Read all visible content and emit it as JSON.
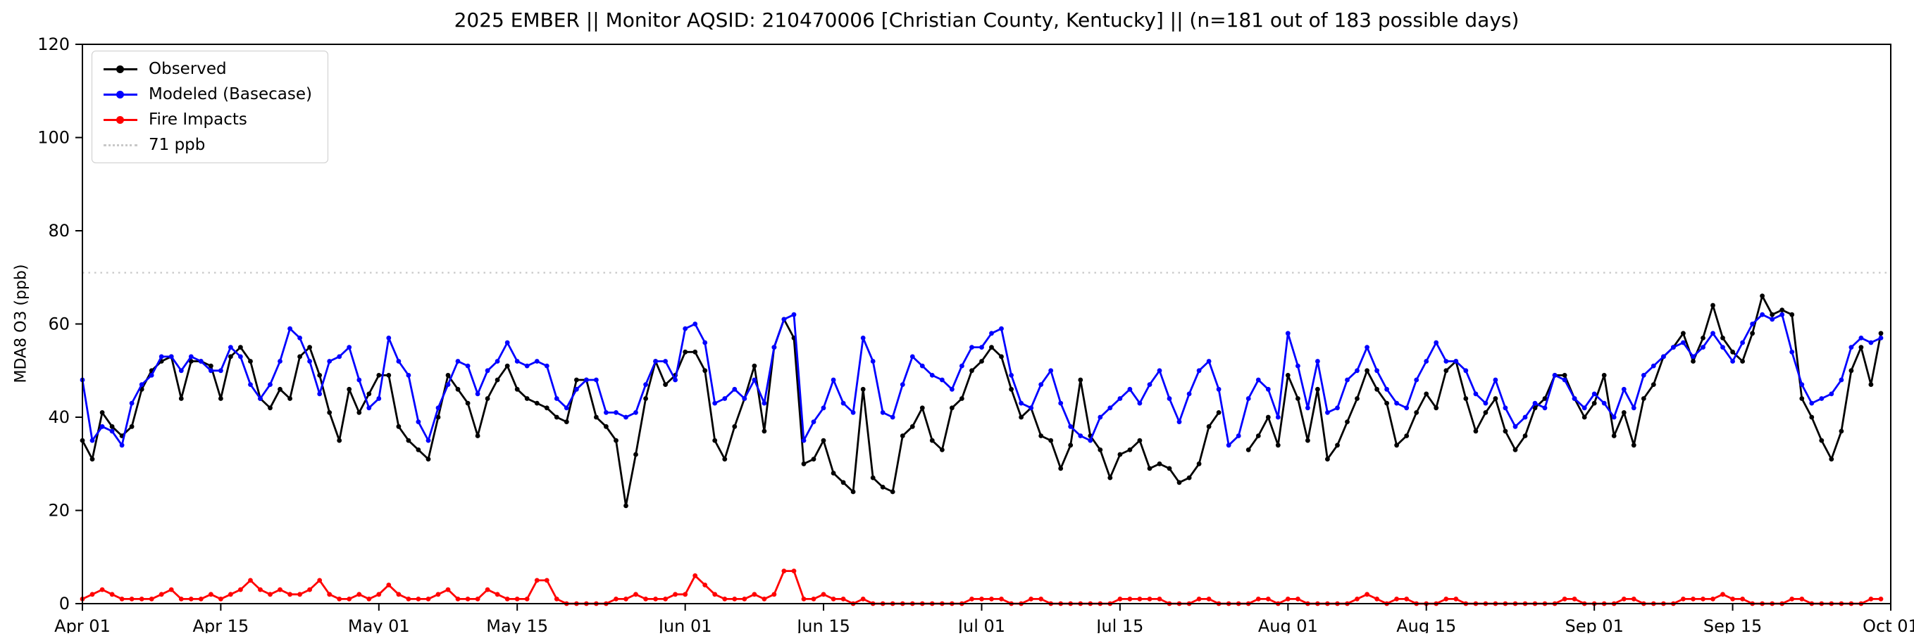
{
  "chart_data": {
    "type": "line",
    "title": "2025 EMBER || Monitor AQSID: 210470006 [Christian County, Kentucky] || (n=181 out of 183 possible days)",
    "xlabel": "",
    "ylabel": "MDA8 O3 (ppb)",
    "ylim": [
      0,
      120
    ],
    "y_ticks": [
      0,
      20,
      40,
      60,
      80,
      100,
      120
    ],
    "x_tick_labels": [
      "Apr 01",
      "Apr 15",
      "May 01",
      "May 15",
      "Jun 01",
      "Jun 15",
      "Jul 01",
      "Jul 15",
      "Aug 01",
      "Aug 15",
      "Sep 01",
      "Sep 15",
      "Oct 01"
    ],
    "x_tick_day_offsets": [
      0,
      14,
      30,
      44,
      61,
      75,
      91,
      105,
      122,
      136,
      153,
      167,
      183
    ],
    "x_range_days": 183,
    "legend_position": "upper left",
    "grid": false,
    "threshold": {
      "value": 71,
      "label": "71 ppb",
      "color": "#c8c8c8",
      "style": "dotted"
    },
    "series": [
      {
        "name": "Observed",
        "color": "#000000",
        "values": [
          35,
          31,
          41,
          38,
          36,
          38,
          46,
          50,
          52,
          53,
          44,
          52,
          52,
          51,
          44,
          53,
          55,
          52,
          44,
          42,
          46,
          44,
          53,
          55,
          49,
          41,
          35,
          46,
          41,
          45,
          49,
          49,
          38,
          35,
          33,
          31,
          40,
          49,
          46,
          43,
          36,
          44,
          48,
          51,
          46,
          44,
          43,
          42,
          40,
          39,
          48,
          48,
          40,
          38,
          35,
          21,
          32,
          44,
          52,
          47,
          49,
          54,
          54,
          50,
          35,
          31,
          38,
          44,
          51,
          37,
          55,
          61,
          57,
          30,
          31,
          35,
          28,
          26,
          24,
          46,
          27,
          25,
          24,
          36,
          38,
          42,
          35,
          33,
          42,
          44,
          50,
          52,
          55,
          53,
          46,
          40,
          42,
          36,
          35,
          29,
          34,
          48,
          36,
          33,
          27,
          32,
          33,
          35,
          29,
          30,
          29,
          26,
          27,
          30,
          38,
          41,
          null,
          null,
          33,
          36,
          40,
          34,
          49,
          44,
          35,
          46,
          31,
          34,
          39,
          44,
          50,
          46,
          43,
          34,
          36,
          41,
          45,
          42,
          50,
          52,
          44,
          37,
          41,
          44,
          37,
          33,
          36,
          42,
          44,
          49,
          49,
          44,
          40,
          43,
          49,
          36,
          41,
          34,
          44,
          47,
          53,
          55,
          58,
          52,
          57,
          64,
          57,
          54,
          52,
          58,
          66,
          62,
          63,
          62,
          44,
          40,
          35,
          31,
          37,
          50,
          55,
          47,
          58
        ]
      },
      {
        "name": "Modeled (Basecase)",
        "color": "#0000ff",
        "values": [
          48,
          35,
          38,
          37,
          34,
          43,
          47,
          49,
          53,
          53,
          50,
          53,
          52,
          50,
          50,
          55,
          53,
          47,
          44,
          47,
          52,
          59,
          57,
          52,
          45,
          52,
          53,
          55,
          48,
          42,
          44,
          57,
          52,
          49,
          39,
          35,
          42,
          47,
          52,
          51,
          45,
          50,
          52,
          56,
          52,
          51,
          52,
          51,
          44,
          42,
          46,
          48,
          48,
          41,
          41,
          40,
          41,
          47,
          52,
          52,
          48,
          59,
          60,
          56,
          43,
          44,
          46,
          44,
          48,
          43,
          55,
          61,
          62,
          35,
          39,
          42,
          48,
          43,
          41,
          57,
          52,
          41,
          40,
          47,
          53,
          51,
          49,
          48,
          46,
          51,
          55,
          55,
          58,
          59,
          49,
          43,
          42,
          47,
          50,
          43,
          38,
          36,
          35,
          40,
          42,
          44,
          46,
          43,
          47,
          50,
          44,
          39,
          45,
          50,
          52,
          46,
          34,
          36,
          44,
          48,
          46,
          40,
          58,
          51,
          42,
          52,
          41,
          42,
          48,
          50,
          55,
          50,
          46,
          43,
          42,
          48,
          52,
          56,
          52,
          52,
          50,
          45,
          43,
          48,
          42,
          38,
          40,
          43,
          42,
          49,
          48,
          44,
          42,
          45,
          43,
          40,
          46,
          42,
          49,
          51,
          53,
          55,
          56,
          53,
          55,
          58,
          55,
          52,
          56,
          60,
          62,
          61,
          62,
          54,
          47,
          43,
          44,
          45,
          48,
          55,
          57,
          56,
          57
        ]
      },
      {
        "name": "Fire Impacts",
        "color": "#ff0000",
        "values": [
          1,
          2,
          3,
          2,
          1,
          1,
          1,
          1,
          2,
          3,
          1,
          1,
          1,
          2,
          1,
          2,
          3,
          5,
          3,
          2,
          3,
          2,
          2,
          3,
          5,
          2,
          1,
          1,
          2,
          1,
          2,
          4,
          2,
          1,
          1,
          1,
          2,
          3,
          1,
          1,
          1,
          3,
          2,
          1,
          1,
          1,
          5,
          5,
          1,
          0,
          0,
          0,
          0,
          0,
          1,
          1,
          2,
          1,
          1,
          1,
          2,
          2,
          6,
          4,
          2,
          1,
          1,
          1,
          2,
          1,
          2,
          7,
          7,
          1,
          1,
          2,
          1,
          1,
          0,
          1,
          0,
          0,
          0,
          0,
          0,
          0,
          0,
          0,
          0,
          0,
          1,
          1,
          1,
          1,
          0,
          0,
          1,
          1,
          0,
          0,
          0,
          0,
          0,
          0,
          0,
          1,
          1,
          1,
          1,
          1,
          0,
          0,
          0,
          1,
          1,
          0,
          0,
          0,
          0,
          1,
          1,
          0,
          1,
          1,
          0,
          0,
          0,
          0,
          0,
          1,
          2,
          1,
          0,
          1,
          1,
          0,
          0,
          0,
          1,
          1,
          0,
          0,
          0,
          0,
          0,
          0,
          0,
          0,
          0,
          0,
          1,
          1,
          0,
          0,
          0,
          0,
          1,
          1,
          0,
          0,
          0,
          0,
          1,
          1,
          1,
          1,
          2,
          1,
          1,
          0,
          0,
          0,
          0,
          1,
          1,
          0,
          0,
          0,
          0,
          0,
          0,
          1,
          1
        ]
      }
    ]
  }
}
